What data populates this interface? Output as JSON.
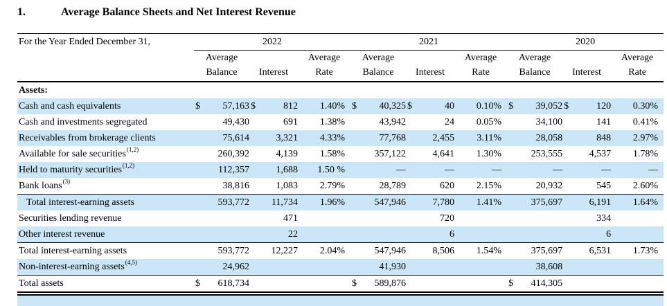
{
  "page": {
    "title_number": "1.",
    "title": "Average Balance Sheets and Net Interest Revenue"
  },
  "colors": {
    "row_stripe": "#cbe6f7",
    "rule": "#000000",
    "background": "#ffffff",
    "text": "#000000"
  },
  "table": {
    "caption": "For the Year Ended December 31,",
    "years": [
      "2022",
      "2021",
      "2020"
    ],
    "subheaders": {
      "balance": [
        "Average",
        "Balance"
      ],
      "interest": "Interest",
      "rate": [
        "Average",
        "Rate"
      ]
    },
    "rows": [
      {
        "label": "Assets:",
        "bold": true,
        "shaded": false,
        "indent": false,
        "rule_above": false,
        "sup": "",
        "cells": null
      },
      {
        "label": "Cash and cash equivalents",
        "bold": false,
        "shaded": true,
        "indent": false,
        "rule_above": false,
        "sup": "",
        "cells": [
          {
            "cur": "$",
            "v": "57,163"
          },
          {
            "cur": "$",
            "v": "812"
          },
          {
            "v": "1.40%"
          },
          {
            "cur": "$",
            "v": "40,325"
          },
          {
            "cur": "$",
            "v": "40"
          },
          {
            "v": "0.10%"
          },
          {
            "cur": "$",
            "v": "39,052"
          },
          {
            "cur": "$",
            "v": "120"
          },
          {
            "v": "0.30%"
          }
        ]
      },
      {
        "label": "Cash and investments segregated",
        "bold": false,
        "shaded": false,
        "indent": false,
        "rule_above": false,
        "sup": "",
        "cells": [
          {
            "v": "49,430"
          },
          {
            "v": "691"
          },
          {
            "v": "1.38%"
          },
          {
            "v": "43,942"
          },
          {
            "v": "24"
          },
          {
            "v": "0.05%"
          },
          {
            "v": "34,100"
          },
          {
            "v": "141"
          },
          {
            "v": "0.41%"
          }
        ]
      },
      {
        "label": "Receivables from brokerage clients",
        "bold": false,
        "shaded": true,
        "indent": false,
        "rule_above": false,
        "sup": "",
        "cells": [
          {
            "v": "75,614"
          },
          {
            "v": "3,321"
          },
          {
            "v": "4.33%"
          },
          {
            "v": "77,768"
          },
          {
            "v": "2,455"
          },
          {
            "v": "3.11%"
          },
          {
            "v": "28,058"
          },
          {
            "v": "848"
          },
          {
            "v": "2.97%"
          }
        ]
      },
      {
        "label": "Available for sale securities",
        "bold": false,
        "shaded": false,
        "indent": false,
        "rule_above": false,
        "sup": "(1,2)",
        "cells": [
          {
            "v": "260,392"
          },
          {
            "v": "4,139"
          },
          {
            "v": "1.58%"
          },
          {
            "v": "357,122"
          },
          {
            "v": "4,641"
          },
          {
            "v": "1.30%"
          },
          {
            "v": "253,555"
          },
          {
            "v": "4,537"
          },
          {
            "v": "1.78%"
          }
        ]
      },
      {
        "label": "Held to maturity securities",
        "bold": false,
        "shaded": true,
        "indent": false,
        "rule_above": false,
        "sup": "(1,2)",
        "cells": [
          {
            "v": "112,357"
          },
          {
            "v": "1,688"
          },
          {
            "v": "1.50 %"
          },
          {
            "v": "—"
          },
          {
            "v": "—"
          },
          {
            "v": "—"
          },
          {
            "v": "—"
          },
          {
            "v": "—"
          },
          {
            "v": "—"
          }
        ]
      },
      {
        "label": "Bank loans",
        "bold": false,
        "shaded": false,
        "indent": false,
        "rule_above": false,
        "sup": "(3)",
        "cells": [
          {
            "v": "38,816"
          },
          {
            "v": "1,083"
          },
          {
            "v": "2.79%"
          },
          {
            "v": "28,789"
          },
          {
            "v": "620"
          },
          {
            "v": "2.15%"
          },
          {
            "v": "20,932"
          },
          {
            "v": "545"
          },
          {
            "v": "2.60%"
          }
        ]
      },
      {
        "label": "Total interest-earning assets",
        "bold": false,
        "shaded": true,
        "indent": true,
        "rule_above": true,
        "sup": "",
        "cells": [
          {
            "v": "593,772"
          },
          {
            "v": "11,734"
          },
          {
            "v": "1.96%"
          },
          {
            "v": "547,946"
          },
          {
            "v": "7,780"
          },
          {
            "v": "1.41%"
          },
          {
            "v": "375,697"
          },
          {
            "v": "6,191"
          },
          {
            "v": "1.64%"
          }
        ]
      },
      {
        "label": "Securities lending revenue",
        "bold": false,
        "shaded": false,
        "indent": false,
        "rule_above": false,
        "sup": "",
        "cells": [
          {
            "v": ""
          },
          {
            "v": "471"
          },
          {
            "v": ""
          },
          {
            "v": ""
          },
          {
            "v": "720"
          },
          {
            "v": ""
          },
          {
            "v": ""
          },
          {
            "v": "334"
          },
          {
            "v": ""
          }
        ]
      },
      {
        "label": "Other interest revenue",
        "bold": false,
        "shaded": true,
        "indent": false,
        "rule_above": false,
        "sup": "",
        "cells": [
          {
            "v": ""
          },
          {
            "v": "22"
          },
          {
            "v": ""
          },
          {
            "v": ""
          },
          {
            "v": "6"
          },
          {
            "v": ""
          },
          {
            "v": ""
          },
          {
            "v": "6"
          },
          {
            "v": ""
          }
        ]
      },
      {
        "label": "Total interest-earning assets",
        "bold": false,
        "shaded": false,
        "indent": false,
        "rule_above": true,
        "sup": "",
        "cells": [
          {
            "v": "593,772"
          },
          {
            "v": "12,227"
          },
          {
            "v": "2.04%"
          },
          {
            "v": "547,946"
          },
          {
            "v": "8,506"
          },
          {
            "v": "1.54%"
          },
          {
            "v": "375,697"
          },
          {
            "v": "6,531"
          },
          {
            "v": "1.73%"
          }
        ]
      },
      {
        "label": "Non-interest-earning assets",
        "bold": false,
        "shaded": true,
        "indent": false,
        "rule_above": false,
        "sup": "(4,5)",
        "cells": [
          {
            "v": "24,962"
          },
          {
            "v": ""
          },
          {
            "v": ""
          },
          {
            "v": "41,930"
          },
          {
            "v": ""
          },
          {
            "v": ""
          },
          {
            "v": "38,608"
          },
          {
            "v": ""
          },
          {
            "v": ""
          }
        ]
      },
      {
        "label": "Total assets",
        "bold": false,
        "shaded": false,
        "indent": false,
        "rule_above": true,
        "sup": "",
        "cells": [
          {
            "cur": "$",
            "v": "618,734"
          },
          {
            "v": ""
          },
          {
            "v": ""
          },
          {
            "cur": "$",
            "v": "589,876"
          },
          {
            "v": ""
          },
          {
            "v": ""
          },
          {
            "cur": "$",
            "v": "414,305"
          },
          {
            "v": ""
          },
          {
            "v": ""
          }
        ]
      }
    ],
    "col_widths": {
      "label": 255,
      "currency": 18,
      "balance": 62,
      "currency2": 18,
      "interest": 52,
      "rate": 76
    }
  }
}
